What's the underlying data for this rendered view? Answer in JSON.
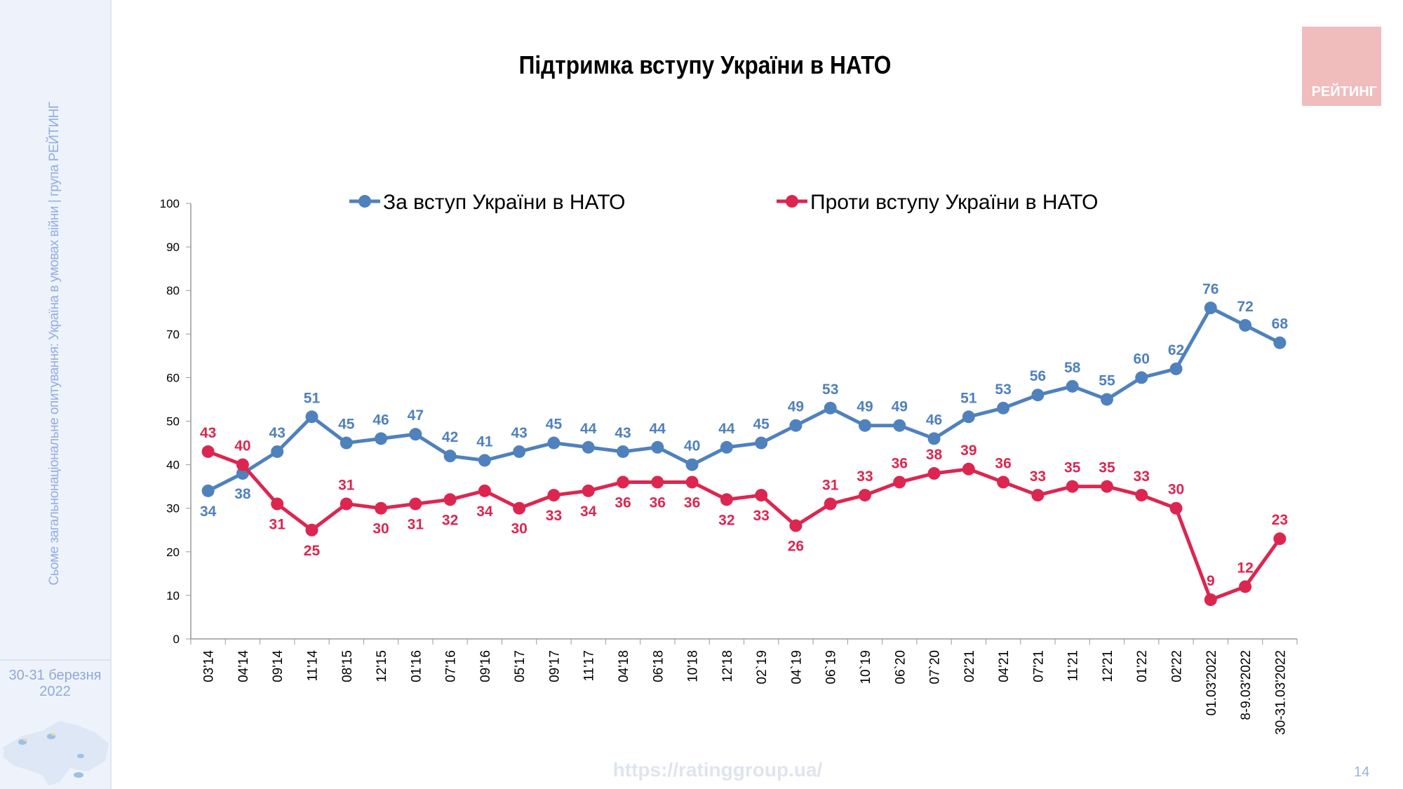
{
  "sidebar": {
    "vertical_text": "Сьоме загальнонаціональне опитування: Україна в умовах війни | група РЕЙТИНГ",
    "date": "30-31 березня 2022"
  },
  "logo": "РЕЙТИНГ",
  "footer": {
    "url": "https://ratinggroup.ua/",
    "page_number": "14"
  },
  "colors": {
    "blue": "#4f81bd",
    "red": "#dc2650"
  },
  "chart_data": {
    "type": "line",
    "title": "Підтримка вступу України в НАТО",
    "xlabel": "",
    "ylabel": "",
    "ylim": [
      0,
      100
    ],
    "yticks": [
      0,
      10,
      20,
      30,
      40,
      50,
      60,
      70,
      80,
      90,
      100
    ],
    "grid": false,
    "legend": "top",
    "categories": [
      "03'14",
      "04'14",
      "09'14",
      "11'14",
      "08'15",
      "12'15",
      "01'16",
      "07'16",
      "09'16",
      "05'17",
      "09'17",
      "11'17",
      "04'18",
      "06'18",
      "10'18",
      "12'18",
      "02`19",
      "04`19",
      "06`19",
      "10`19",
      "06`20",
      "07`20",
      "02'21",
      "04'21",
      "07'21",
      "11'21",
      "12'21",
      "01'22",
      "02'22",
      "01.03'2022",
      "8-9.03'2022",
      "30-31.03'2022"
    ],
    "series": [
      {
        "name": "За вступ України в НАТО",
        "color": "#4f81bd",
        "values": [
          34,
          38,
          43,
          51,
          45,
          46,
          47,
          42,
          41,
          43,
          45,
          44,
          43,
          44,
          40,
          44,
          45,
          49,
          53,
          49,
          49,
          46,
          51,
          53,
          56,
          58,
          55,
          60,
          62,
          76,
          72,
          68
        ]
      },
      {
        "name": "Проти вступу України в НАТО",
        "color": "#dc2650",
        "values": [
          43,
          40,
          31,
          25,
          31,
          30,
          31,
          32,
          34,
          30,
          33,
          34,
          36,
          36,
          36,
          32,
          33,
          26,
          31,
          33,
          36,
          38,
          39,
          36,
          33,
          35,
          35,
          33,
          30,
          9,
          12,
          23
        ]
      }
    ]
  }
}
